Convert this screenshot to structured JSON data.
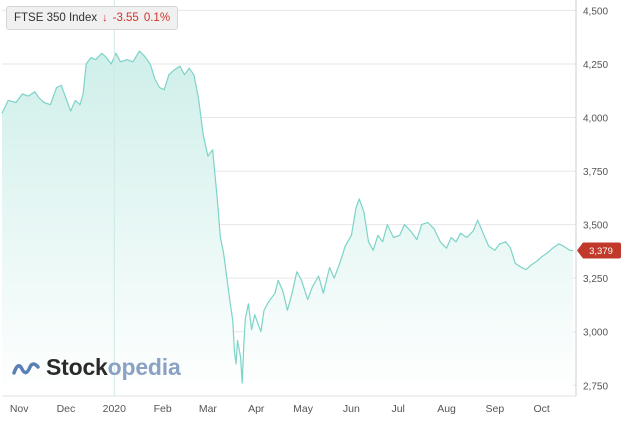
{
  "tooltip": {
    "name": "FTSE 350 Index",
    "arrow": "↓",
    "change": "-3.55",
    "percent": "0.1%"
  },
  "logo": {
    "icon": "wave-logo-icon",
    "text_main": "Stock",
    "text_accent": "opedia"
  },
  "colors": {
    "line": "#7dd3c8",
    "fill_top": "#cfefea",
    "fill_bottom": "#ffffff",
    "grid": "#e6e6e6",
    "axis_text": "#555555",
    "badge": "#c0392b",
    "logo_icon": "#5a7fb5"
  },
  "chart_data": {
    "type": "area",
    "title": "FTSE 350 Index",
    "xlabel": "",
    "ylabel": "",
    "ylim": [
      2700,
      4530
    ],
    "xlim": [
      "2019-10-21",
      "2020-10-23"
    ],
    "y_ticks": [
      2750,
      3000,
      3250,
      3500,
      3750,
      4000,
      4250,
      4500
    ],
    "y_tick_labels": [
      "2,750",
      "3,000",
      "3,250",
      "3,500",
      "3,750",
      "4,000",
      "4,250",
      "4,500"
    ],
    "x_ticks": [
      {
        "date": "2019-11-01",
        "label": "Nov"
      },
      {
        "date": "2019-12-01",
        "label": "Dec"
      },
      {
        "date": "2020-01-01",
        "label": "2020"
      },
      {
        "date": "2020-02-01",
        "label": "Feb"
      },
      {
        "date": "2020-03-01",
        "label": "Mar"
      },
      {
        "date": "2020-04-01",
        "label": "Apr"
      },
      {
        "date": "2020-05-01",
        "label": "May"
      },
      {
        "date": "2020-06-01",
        "label": "Jun"
      },
      {
        "date": "2020-07-01",
        "label": "Jul"
      },
      {
        "date": "2020-08-01",
        "label": "Aug"
      },
      {
        "date": "2020-09-01",
        "label": "Sep"
      },
      {
        "date": "2020-10-01",
        "label": "Oct"
      }
    ],
    "crosshair_date": "2020-01-01",
    "last_value_label": "3,379",
    "grid": "horizontal",
    "series": [
      {
        "values": [
          [
            "2019-10-21",
            4020
          ],
          [
            "2019-10-25",
            4080
          ],
          [
            "2019-10-30",
            4070
          ],
          [
            "2019-11-03",
            4110
          ],
          [
            "2019-11-07",
            4100
          ],
          [
            "2019-11-11",
            4120
          ],
          [
            "2019-11-14",
            4090
          ],
          [
            "2019-11-17",
            4070
          ],
          [
            "2019-11-21",
            4060
          ],
          [
            "2019-11-25",
            4140
          ],
          [
            "2019-11-28",
            4150
          ],
          [
            "2019-12-01",
            4090
          ],
          [
            "2019-12-04",
            4030
          ],
          [
            "2019-12-07",
            4080
          ],
          [
            "2019-12-10",
            4060
          ],
          [
            "2019-12-12",
            4110
          ],
          [
            "2019-12-14",
            4250
          ],
          [
            "2019-12-17",
            4280
          ],
          [
            "2019-12-20",
            4270
          ],
          [
            "2019-12-24",
            4300
          ],
          [
            "2019-12-27",
            4280
          ],
          [
            "2019-12-30",
            4250
          ],
          [
            "2020-01-02",
            4300
          ],
          [
            "2020-01-05",
            4260
          ],
          [
            "2020-01-09",
            4270
          ],
          [
            "2020-01-13",
            4260
          ],
          [
            "2020-01-17",
            4310
          ],
          [
            "2020-01-20",
            4290
          ],
          [
            "2020-01-24",
            4250
          ],
          [
            "2020-01-27",
            4180
          ],
          [
            "2020-01-30",
            4140
          ],
          [
            "2020-02-02",
            4130
          ],
          [
            "2020-02-05",
            4200
          ],
          [
            "2020-02-08",
            4220
          ],
          [
            "2020-02-12",
            4240
          ],
          [
            "2020-02-15",
            4200
          ],
          [
            "2020-02-18",
            4230
          ],
          [
            "2020-02-21",
            4200
          ],
          [
            "2020-02-24",
            4090
          ],
          [
            "2020-02-27",
            3920
          ],
          [
            "2020-03-01",
            3820
          ],
          [
            "2020-03-04",
            3850
          ],
          [
            "2020-03-07",
            3620
          ],
          [
            "2020-03-09",
            3440
          ],
          [
            "2020-03-11",
            3370
          ],
          [
            "2020-03-13",
            3260
          ],
          [
            "2020-03-15",
            3150
          ],
          [
            "2020-03-17",
            3050
          ],
          [
            "2020-03-18",
            2910
          ],
          [
            "2020-03-19",
            2850
          ],
          [
            "2020-03-20",
            2960
          ],
          [
            "2020-03-22",
            2880
          ],
          [
            "2020-03-23",
            2760
          ],
          [
            "2020-03-24",
            2940
          ],
          [
            "2020-03-25",
            3060
          ],
          [
            "2020-03-27",
            3130
          ],
          [
            "2020-03-29",
            3010
          ],
          [
            "2020-03-31",
            3080
          ],
          [
            "2020-04-02",
            3040
          ],
          [
            "2020-04-04",
            3000
          ],
          [
            "2020-04-06",
            3100
          ],
          [
            "2020-04-09",
            3140
          ],
          [
            "2020-04-13",
            3180
          ],
          [
            "2020-04-15",
            3240
          ],
          [
            "2020-04-18",
            3190
          ],
          [
            "2020-04-21",
            3100
          ],
          [
            "2020-04-24",
            3180
          ],
          [
            "2020-04-27",
            3280
          ],
          [
            "2020-04-30",
            3240
          ],
          [
            "2020-05-04",
            3150
          ],
          [
            "2020-05-07",
            3210
          ],
          [
            "2020-05-11",
            3260
          ],
          [
            "2020-05-14",
            3180
          ],
          [
            "2020-05-18",
            3300
          ],
          [
            "2020-05-21",
            3250
          ],
          [
            "2020-05-25",
            3330
          ],
          [
            "2020-05-28",
            3400
          ],
          [
            "2020-06-01",
            3450
          ],
          [
            "2020-06-04",
            3580
          ],
          [
            "2020-06-06",
            3620
          ],
          [
            "2020-06-09",
            3560
          ],
          [
            "2020-06-12",
            3420
          ],
          [
            "2020-06-15",
            3380
          ],
          [
            "2020-06-18",
            3450
          ],
          [
            "2020-06-21",
            3420
          ],
          [
            "2020-06-24",
            3500
          ],
          [
            "2020-06-28",
            3440
          ],
          [
            "2020-07-02",
            3450
          ],
          [
            "2020-07-05",
            3500
          ],
          [
            "2020-07-09",
            3470
          ],
          [
            "2020-07-13",
            3430
          ],
          [
            "2020-07-16",
            3500
          ],
          [
            "2020-07-20",
            3510
          ],
          [
            "2020-07-24",
            3480
          ],
          [
            "2020-07-28",
            3420
          ],
          [
            "2020-08-01",
            3390
          ],
          [
            "2020-08-04",
            3440
          ],
          [
            "2020-08-07",
            3420
          ],
          [
            "2020-08-10",
            3460
          ],
          [
            "2020-08-14",
            3440
          ],
          [
            "2020-08-18",
            3470
          ],
          [
            "2020-08-21",
            3520
          ],
          [
            "2020-08-25",
            3450
          ],
          [
            "2020-08-28",
            3400
          ],
          [
            "2020-09-01",
            3380
          ],
          [
            "2020-09-04",
            3410
          ],
          [
            "2020-09-08",
            3420
          ],
          [
            "2020-09-11",
            3390
          ],
          [
            "2020-09-14",
            3320
          ],
          [
            "2020-09-18",
            3300
          ],
          [
            "2020-09-21",
            3290
          ],
          [
            "2020-09-24",
            3310
          ],
          [
            "2020-09-28",
            3330
          ],
          [
            "2020-10-01",
            3350
          ],
          [
            "2020-10-05",
            3370
          ],
          [
            "2020-10-08",
            3390
          ],
          [
            "2020-10-12",
            3410
          ],
          [
            "2020-10-15",
            3400
          ],
          [
            "2020-10-19",
            3380
          ],
          [
            "2020-10-21",
            3379
          ]
        ]
      }
    ]
  }
}
